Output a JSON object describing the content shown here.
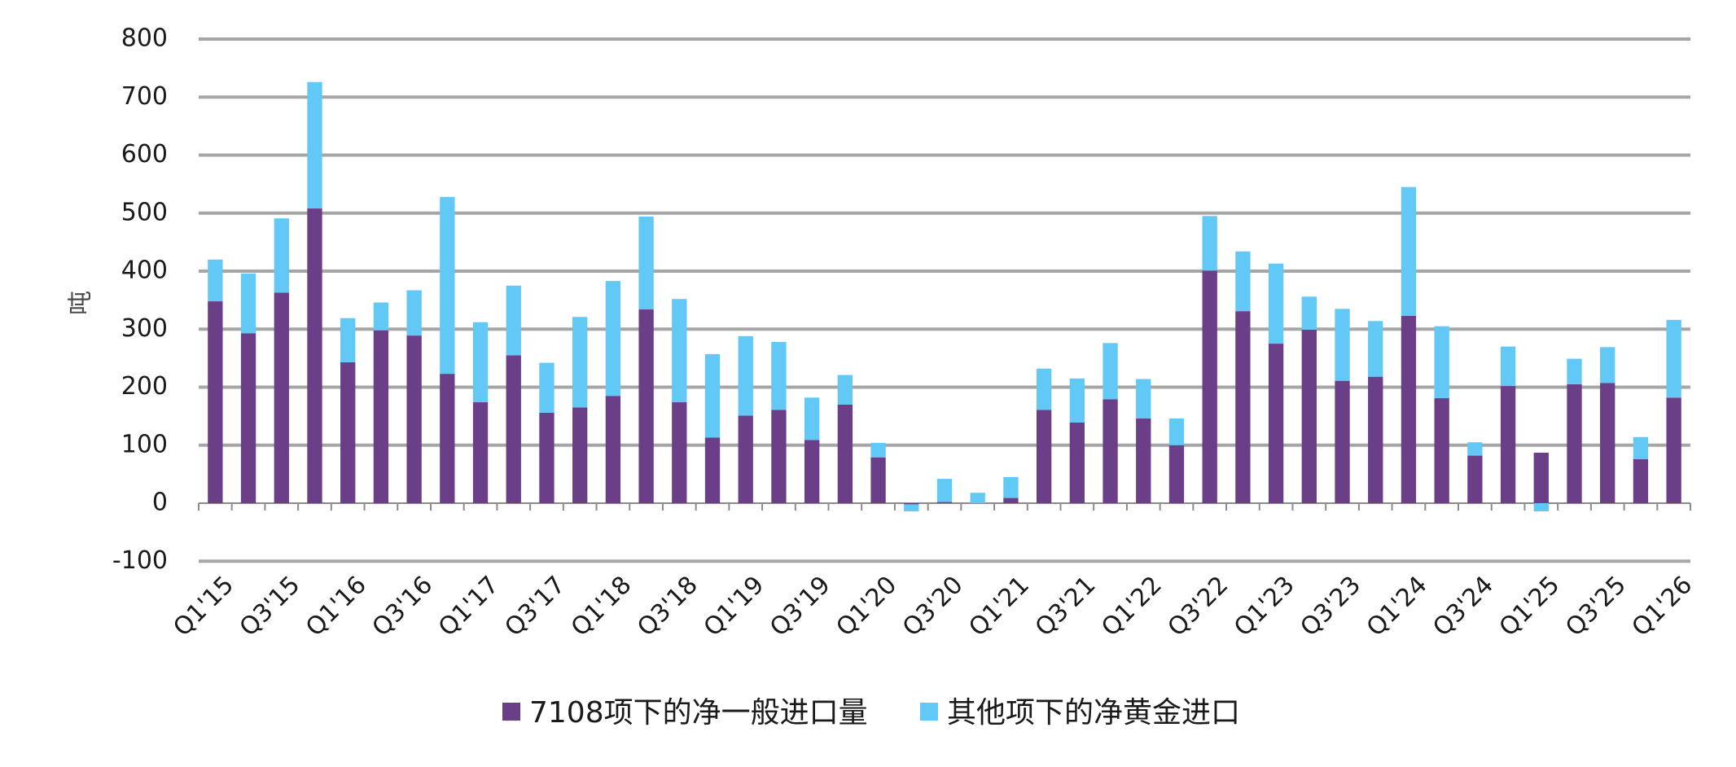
{
  "chart_data": {
    "type": "bar",
    "stacked": true,
    "ylabel": "吨",
    "xlabel": "",
    "ylim": [
      -100,
      800
    ],
    "yticks": [
      -100,
      0,
      100,
      200,
      300,
      400,
      500,
      600,
      700,
      800
    ],
    "grid": true,
    "legend_position": "bottom",
    "categories": [
      "Q1'15",
      "Q2'15",
      "Q3'15",
      "Q4'15",
      "Q1'16",
      "Q2'16",
      "Q3'16",
      "Q4'16",
      "Q1'17",
      "Q2'17",
      "Q3'17",
      "Q4'17",
      "Q1'18",
      "Q2'18",
      "Q3'18",
      "Q4'18",
      "Q1'19",
      "Q2'19",
      "Q3'19",
      "Q4'19",
      "Q1'20",
      "Q2'20",
      "Q3'20",
      "Q4'20",
      "Q1'21",
      "Q2'21",
      "Q3'21",
      "Q4'21",
      "Q1'22",
      "Q2'22",
      "Q3'22",
      "Q4'22",
      "Q1'23",
      "Q2'23",
      "Q3'23",
      "Q4'23",
      "Q1'24",
      "Q2'24",
      "Q3'24",
      "Q4'24",
      "Q1'25",
      "Q2'25",
      "Q3'25",
      "Q4'25",
      "Q1'26"
    ],
    "tick_labels": [
      "Q1'15",
      "Q3'15",
      "Q1'16",
      "Q3'16",
      "Q1'17",
      "Q3'17",
      "Q1'18",
      "Q3'18",
      "Q1'19",
      "Q3'19",
      "Q1'20",
      "Q3'20",
      "Q1'21",
      "Q3'21",
      "Q1'22",
      "Q3'22",
      "Q1'23",
      "Q3'23",
      "Q1'24",
      "Q3'24",
      "Q1'25",
      "Q3'25",
      "Q1'26"
    ],
    "series": [
      {
        "name": "7108项下的净一般进口量",
        "color": "#6b3f87",
        "values": [
          348,
          293,
          363,
          508,
          243,
          298,
          289,
          223,
          174,
          255,
          156,
          165,
          185,
          334,
          174,
          113,
          151,
          161,
          109,
          170,
          79,
          -2,
          2,
          0,
          9,
          161,
          139,
          179,
          146,
          100,
          401,
          331,
          275,
          299,
          211,
          218,
          323,
          181,
          82,
          202,
          87,
          205,
          207,
          76,
          182
        ]
      },
      {
        "name": "其他项下的净黄金进口",
        "color": "#62c8f5",
        "values": [
          72,
          103,
          128,
          218,
          76,
          48,
          78,
          305,
          138,
          120,
          86,
          156,
          198,
          160,
          178,
          144,
          137,
          117,
          73,
          51,
          25,
          -12,
          40,
          18,
          36,
          71,
          76,
          97,
          68,
          46,
          94,
          103,
          138,
          57,
          124,
          96,
          222,
          124,
          23,
          68,
          -14,
          44,
          62,
          38,
          134
        ]
      }
    ]
  }
}
